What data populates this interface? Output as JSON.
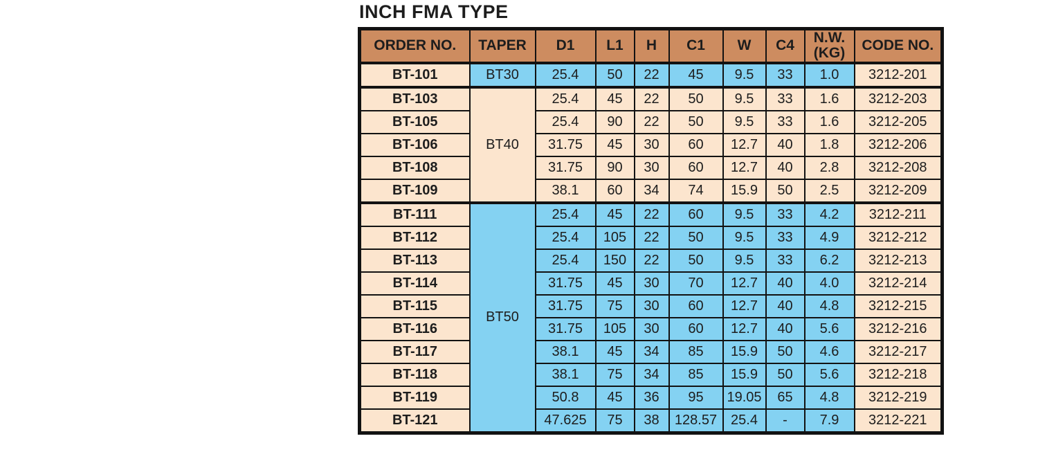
{
  "title": "INCH FMA TYPE",
  "colors": {
    "page_bg": "#FFFFFF",
    "header_bg": "#CD8C60",
    "peach": "#FCE5CE",
    "blue": "#84D2F2",
    "border": "#121212",
    "text": "#1D1D1D"
  },
  "table": {
    "headers": [
      "ORDER NO.",
      "TAPER",
      "D1",
      "L1",
      "H",
      "C1",
      "W",
      "C4",
      "N.W. (KG)",
      "CODE NO."
    ],
    "groups": [
      {
        "taper": "BT30",
        "tone": "blue",
        "rows": [
          {
            "order": "BT-101",
            "d1": "25.4",
            "l1": "50",
            "h": "22",
            "c1": "45",
            "w": "9.5",
            "c4": "33",
            "nw": "1.0",
            "code": "3212-201"
          }
        ]
      },
      {
        "taper": "BT40",
        "tone": "peach",
        "rows": [
          {
            "order": "BT-103",
            "d1": "25.4",
            "l1": "45",
            "h": "22",
            "c1": "50",
            "w": "9.5",
            "c4": "33",
            "nw": "1.6",
            "code": "3212-203"
          },
          {
            "order": "BT-105",
            "d1": "25.4",
            "l1": "90",
            "h": "22",
            "c1": "50",
            "w": "9.5",
            "c4": "33",
            "nw": "1.6",
            "code": "3212-205"
          },
          {
            "order": "BT-106",
            "d1": "31.75",
            "l1": "45",
            "h": "30",
            "c1": "60",
            "w": "12.7",
            "c4": "40",
            "nw": "1.8",
            "code": "3212-206"
          },
          {
            "order": "BT-108",
            "d1": "31.75",
            "l1": "90",
            "h": "30",
            "c1": "60",
            "w": "12.7",
            "c4": "40",
            "nw": "2.8",
            "code": "3212-208"
          },
          {
            "order": "BT-109",
            "d1": "38.1",
            "l1": "60",
            "h": "34",
            "c1": "74",
            "w": "15.9",
            "c4": "50",
            "nw": "2.5",
            "code": "3212-209"
          }
        ]
      },
      {
        "taper": "BT50",
        "tone": "blue",
        "rows": [
          {
            "order": "BT-111",
            "d1": "25.4",
            "l1": "45",
            "h": "22",
            "c1": "60",
            "w": "9.5",
            "c4": "33",
            "nw": "4.2",
            "code": "3212-211"
          },
          {
            "order": "BT-112",
            "d1": "25.4",
            "l1": "105",
            "h": "22",
            "c1": "50",
            "w": "9.5",
            "c4": "33",
            "nw": "4.9",
            "code": "3212-212"
          },
          {
            "order": "BT-113",
            "d1": "25.4",
            "l1": "150",
            "h": "22",
            "c1": "50",
            "w": "9.5",
            "c4": "33",
            "nw": "6.2",
            "code": "3212-213"
          },
          {
            "order": "BT-114",
            "d1": "31.75",
            "l1": "45",
            "h": "30",
            "c1": "70",
            "w": "12.7",
            "c4": "40",
            "nw": "4.0",
            "code": "3212-214"
          },
          {
            "order": "BT-115",
            "d1": "31.75",
            "l1": "75",
            "h": "30",
            "c1": "60",
            "w": "12.7",
            "c4": "40",
            "nw": "4.8",
            "code": "3212-215"
          },
          {
            "order": "BT-116",
            "d1": "31.75",
            "l1": "105",
            "h": "30",
            "c1": "60",
            "w": "12.7",
            "c4": "40",
            "nw": "5.6",
            "code": "3212-216"
          },
          {
            "order": "BT-117",
            "d1": "38.1",
            "l1": "45",
            "h": "34",
            "c1": "85",
            "w": "15.9",
            "c4": "50",
            "nw": "4.6",
            "code": "3212-217"
          },
          {
            "order": "BT-118",
            "d1": "38.1",
            "l1": "75",
            "h": "34",
            "c1": "85",
            "w": "15.9",
            "c4": "50",
            "nw": "5.6",
            "code": "3212-218"
          },
          {
            "order": "BT-119",
            "d1": "50.8",
            "l1": "45",
            "h": "36",
            "c1": "95",
            "w": "19.05",
            "c4": "65",
            "nw": "4.8",
            "code": "3212-219"
          },
          {
            "order": "BT-121",
            "d1": "47.625",
            "l1": "75",
            "h": "38",
            "c1": "128.57",
            "w": "25.4",
            "c4": "-",
            "nw": "7.9",
            "code": "3212-221"
          }
        ]
      }
    ]
  }
}
